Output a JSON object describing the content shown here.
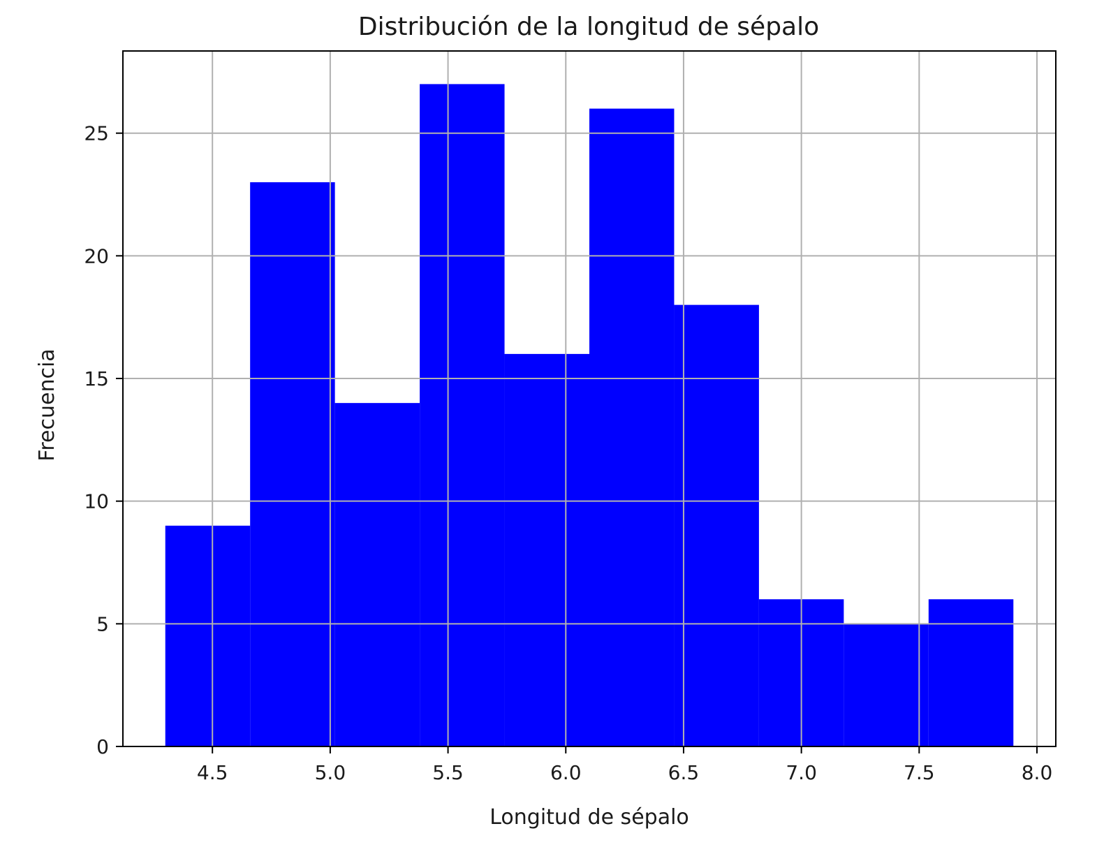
{
  "chart_data": {
    "type": "histogram",
    "title": "Distribución de la longitud de sépalo",
    "xlabel": "Longitud de sépalo",
    "ylabel": "Frecuencia",
    "bin_edges": [
      4.3,
      4.66,
      5.02,
      5.38,
      5.74,
      6.1,
      6.46,
      6.82,
      7.18,
      7.54,
      7.9
    ],
    "counts": [
      9,
      23,
      14,
      27,
      16,
      26,
      18,
      6,
      5,
      6
    ],
    "xlim": [
      4.12,
      8.08
    ],
    "ylim": [
      0,
      28.35
    ],
    "x_ticks": [
      4.5,
      5.0,
      5.5,
      6.0,
      6.5,
      7.0,
      7.5,
      8.0
    ],
    "x_tick_labels": [
      "4.5",
      "5.0",
      "5.5",
      "6.0",
      "6.5",
      "7.0",
      "7.5",
      "8.0"
    ],
    "y_ticks": [
      0,
      5,
      10,
      15,
      20,
      25
    ],
    "y_tick_labels": [
      "0",
      "5",
      "10",
      "15",
      "20",
      "25"
    ],
    "grid": true,
    "bar_color": "#0000ff",
    "grid_color": "#b0b0b0"
  }
}
